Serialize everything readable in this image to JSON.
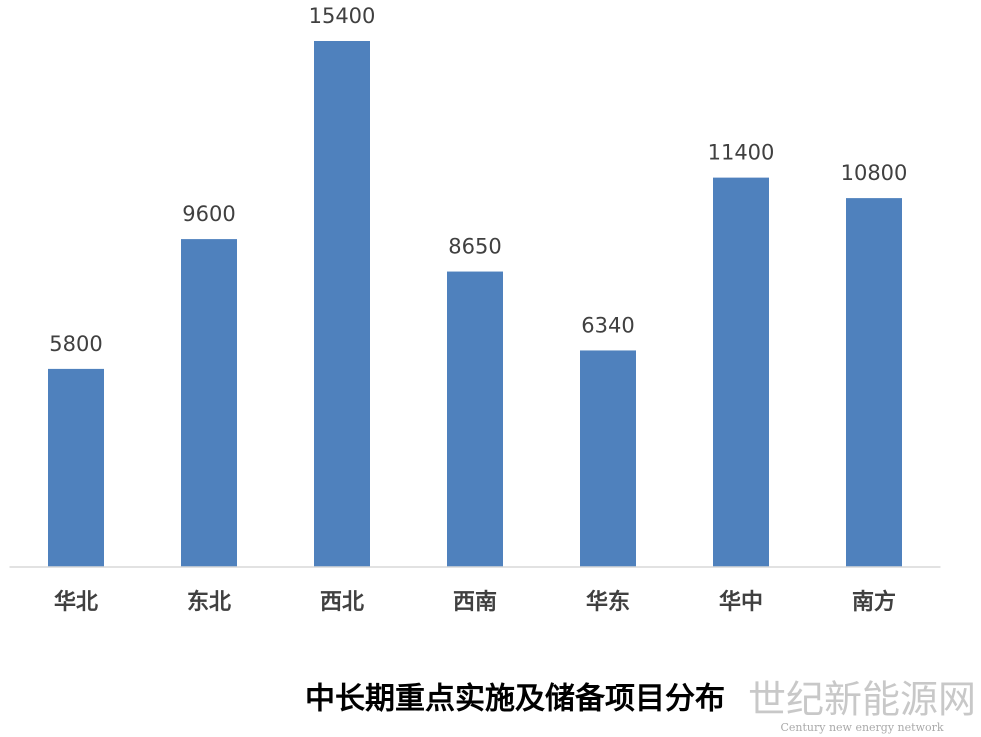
{
  "chart_data": {
    "type": "bar",
    "title": "中长期重点实施及储备项目分布",
    "categories": [
      "华北",
      "东北",
      "西北",
      "西南",
      "华东",
      "华中",
      "南方"
    ],
    "values": [
      5800,
      9600,
      15400,
      8650,
      6340,
      11400,
      10800
    ],
    "color": "#4f81bd",
    "ylim": [
      0,
      16000
    ],
    "grid": false,
    "watermark": {
      "name": "世纪新能源网",
      "subtitle": "Century new energy network"
    }
  }
}
